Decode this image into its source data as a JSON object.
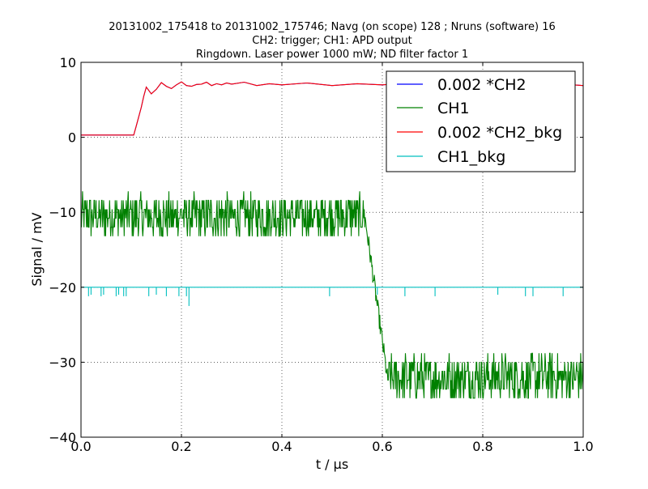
{
  "chart_data": {
    "type": "line",
    "title_lines": [
      "20131002_175418 to 20131002_175746; Navg (on scope) 128 ; Nruns (software) 16",
      "CH2: trigger; CH1: APD output",
      "Ringdown. Laser power 1000 mW; ND filter factor 1"
    ],
    "xlabel": "t / μs",
    "ylabel": "Signal / mV",
    "xlim": [
      0.0,
      1.0
    ],
    "ylim": [
      -40,
      10
    ],
    "xticks": [
      0.0,
      0.2,
      0.4,
      0.6,
      0.8,
      1.0
    ],
    "xtick_labels": [
      "0.0",
      "0.2",
      "0.4",
      "0.6",
      "0.8",
      "1.0"
    ],
    "yticks": [
      10,
      0,
      -10,
      -20,
      -30,
      -40
    ],
    "ytick_labels": [
      "10",
      "0",
      "−10",
      "−20",
      "−30",
      "−40"
    ],
    "grid": true,
    "legend_position": "top-right",
    "series": [
      {
        "name": "0.002 *CH2",
        "color": "#0000ff",
        "x": [
          0.0,
          0.105,
          0.11,
          0.12,
          0.125,
          0.13,
          0.14,
          0.15,
          0.16,
          0.17,
          0.18,
          0.19,
          0.2,
          0.21,
          0.22,
          0.24,
          0.26,
          0.28,
          0.3,
          0.35,
          0.4,
          0.5,
          0.6,
          0.7,
          0.8,
          0.9,
          1.0
        ],
        "y": [
          0.3,
          0.3,
          1.5,
          4.0,
          5.5,
          6.7,
          5.8,
          6.4,
          7.3,
          6.8,
          6.5,
          7.0,
          7.4,
          6.9,
          6.8,
          7.1,
          6.9,
          7.0,
          7.1,
          6.9,
          7.0,
          6.9,
          7.0,
          6.9,
          7.0,
          6.9,
          6.9
        ]
      },
      {
        "name": "CH1",
        "color": "#008000",
        "segments": [
          {
            "x_start": 0.0,
            "x_end": 0.565,
            "mean": -10.5,
            "noise_amplitude": 2.8
          },
          {
            "x_start": 0.565,
            "x_end": 0.61,
            "y_start": -10.5,
            "y_end": -32.0
          },
          {
            "x_start": 0.61,
            "x_end": 1.0,
            "mean": -32.0,
            "noise_amplitude": 3.0
          }
        ]
      },
      {
        "name": "0.002 *CH2_bkg",
        "color": "#ff0000",
        "x": [
          0.0,
          0.105,
          0.11,
          0.12,
          0.125,
          0.13,
          0.14,
          0.15,
          0.16,
          0.17,
          0.18,
          0.19,
          0.2,
          0.21,
          0.22,
          0.24,
          0.26,
          0.28,
          0.3,
          0.35,
          0.4,
          0.5,
          0.6,
          0.7,
          0.8,
          0.9,
          1.0
        ],
        "y": [
          0.3,
          0.3,
          1.5,
          4.0,
          5.5,
          6.7,
          5.8,
          6.4,
          7.3,
          6.8,
          6.5,
          7.0,
          7.4,
          6.9,
          6.8,
          7.1,
          6.9,
          7.0,
          7.1,
          6.9,
          7.0,
          6.9,
          7.0,
          6.9,
          7.0,
          6.9,
          6.9
        ]
      },
      {
        "name": "CH1_bkg",
        "color": "#00bfbf",
        "baseline": -20.0,
        "spikes": [
          {
            "x": 0.015,
            "y": -21.2
          },
          {
            "x": 0.02,
            "y": -21.0
          },
          {
            "x": 0.04,
            "y": -21.2
          },
          {
            "x": 0.045,
            "y": -21.0
          },
          {
            "x": 0.07,
            "y": -21.2
          },
          {
            "x": 0.075,
            "y": -21.0
          },
          {
            "x": 0.085,
            "y": -21.2
          },
          {
            "x": 0.09,
            "y": -21.2
          },
          {
            "x": 0.135,
            "y": -21.2
          },
          {
            "x": 0.15,
            "y": -21.0
          },
          {
            "x": 0.17,
            "y": -21.2
          },
          {
            "x": 0.195,
            "y": -21.2
          },
          {
            "x": 0.21,
            "y": -21.2
          },
          {
            "x": 0.215,
            "y": -22.5
          },
          {
            "x": 0.495,
            "y": -21.2
          },
          {
            "x": 0.59,
            "y": -21.0
          },
          {
            "x": 0.645,
            "y": -21.2
          },
          {
            "x": 0.705,
            "y": -21.2
          },
          {
            "x": 0.83,
            "y": -21.0
          },
          {
            "x": 0.885,
            "y": -21.2
          },
          {
            "x": 0.9,
            "y": -21.2
          },
          {
            "x": 0.96,
            "y": -21.2
          }
        ]
      }
    ]
  }
}
